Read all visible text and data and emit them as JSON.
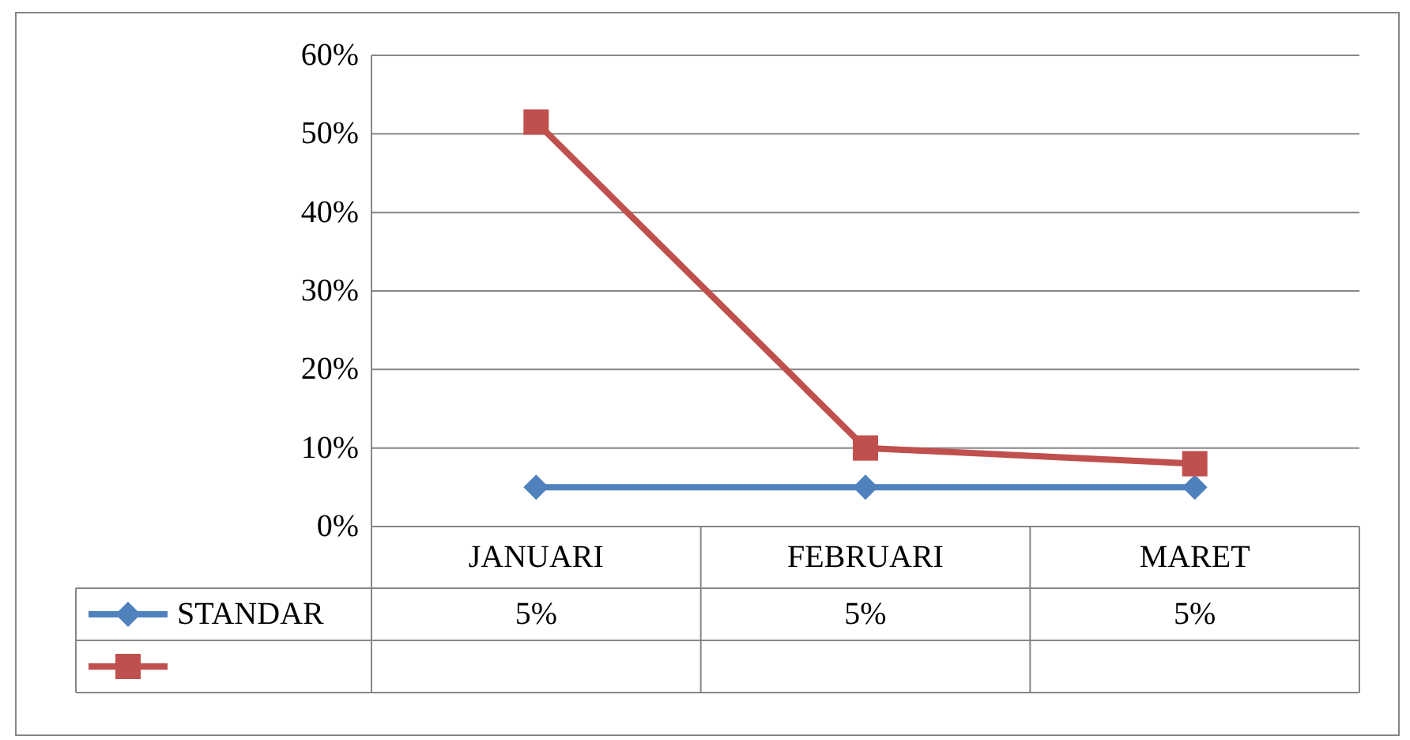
{
  "chart_data": {
    "type": "line",
    "categories": [
      "JANUARI",
      "FEBRUARI",
      "MARET"
    ],
    "series": [
      {
        "name": "STANDAR",
        "color": "#4f81bd",
        "values": [
          5,
          5,
          5
        ],
        "marker": "diamond",
        "value_labels": [
          "5%",
          "5%",
          "5%"
        ]
      },
      {
        "color": "#c0504d",
        "values": [
          51.5,
          10,
          8
        ],
        "marker": "square"
      }
    ],
    "ylim": [
      0,
      60
    ],
    "yticks": [
      {
        "value": 0,
        "label": "0%"
      },
      {
        "value": 10,
        "label": "10%"
      },
      {
        "value": 20,
        "label": "20%"
      },
      {
        "value": 30,
        "label": "30%"
      },
      {
        "value": 40,
        "label": "40%"
      },
      {
        "value": 50,
        "label": "50%"
      },
      {
        "value": 60,
        "label": "60%"
      }
    ],
    "grid": "y",
    "line_style": "solid",
    "legend": "bottom left"
  }
}
